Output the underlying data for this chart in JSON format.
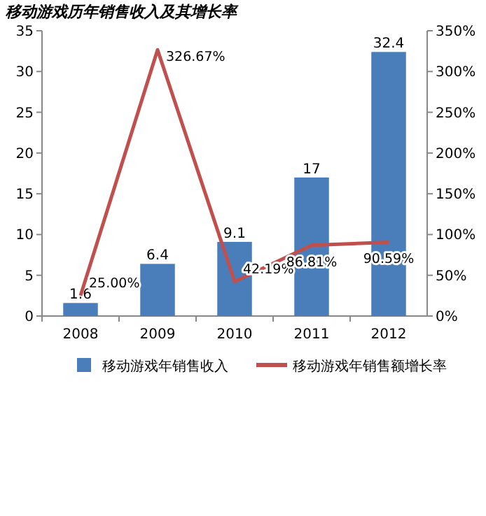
{
  "chart_data": {
    "type": "bar",
    "title": "移动游戏历年销售收入及其增长率",
    "categories": [
      "2008",
      "2009",
      "2010",
      "2011",
      "2012"
    ],
    "series": [
      {
        "name": "移动游戏年销售收入",
        "color": "#4a7ebb",
        "values": [
          1.6,
          6.4,
          9.1,
          17,
          32.4
        ],
        "value_labels": [
          "1.6",
          "6.4",
          "9.1",
          "17",
          "32.4"
        ]
      },
      {
        "type": "line",
        "axis": "y2",
        "name": "移动游戏年销售额增长率",
        "color": "#c0504d",
        "values": [
          25.0,
          326.67,
          42.19,
          86.81,
          90.59
        ],
        "value_labels": [
          "25.00%",
          "326.67%",
          "42.19%",
          "86.81%",
          "90.59%"
        ]
      }
    ],
    "ylim": [
      0,
      35
    ],
    "yticks": [
      0,
      5,
      10,
      15,
      20,
      25,
      30,
      35
    ],
    "y2lim": [
      0,
      350
    ],
    "y2ticks": [
      {
        "value": 0,
        "label": "0%"
      },
      {
        "value": 50,
        "label": "50%"
      },
      {
        "value": 100,
        "label": "100%"
      },
      {
        "value": 150,
        "label": "150%"
      },
      {
        "value": 200,
        "label": "200%"
      },
      {
        "value": 250,
        "label": "250%"
      },
      {
        "value": 300,
        "label": "300%"
      },
      {
        "value": 350,
        "label": "350%"
      }
    ],
    "legend": "bottom"
  }
}
